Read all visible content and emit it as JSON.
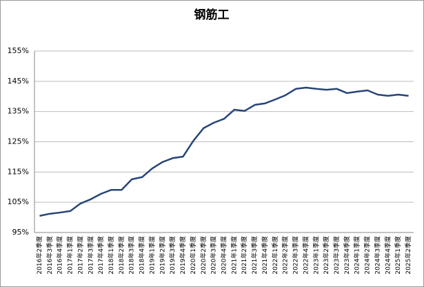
{
  "chart_data": {
    "type": "line",
    "title": "钢筋工",
    "categories": [
      "2016年2季度",
      "2016年3季度",
      "2016年4季度",
      "2017年1季度",
      "2017年2季度",
      "2017年3季度",
      "2017年4季度",
      "2018年1季度",
      "2018年2季度",
      "2018年3季度",
      "2018年4季度",
      "2019年1季度",
      "2019年2季度",
      "2019年3季度",
      "2019年4季度",
      "2020年1季度",
      "2020年2季度",
      "2020年3季度",
      "2020年4季度",
      "2021年1季度",
      "2021年2季度",
      "2021年3季度",
      "2021年4季度",
      "2022年1季度",
      "2022年2季度",
      "2022年3季度",
      "2022年4季度",
      "2023年1季度",
      "2023年2季度",
      "2023年3季度",
      "2023年4季度",
      "2024年1季度",
      "2024年2季度",
      "2024年3季度",
      "2024年4季度",
      "2025年1季度",
      "2025年2季度"
    ],
    "values": [
      100.5,
      101.2,
      101.6,
      102.1,
      104.6,
      106.0,
      107.8,
      109.1,
      109.1,
      112.6,
      113.3,
      116.2,
      118.3,
      119.6,
      120.1,
      125.3,
      129.5,
      131.3,
      132.6,
      135.6,
      135.2,
      137.2,
      137.7,
      139.0,
      140.4,
      142.5,
      142.9,
      142.5,
      142.2,
      142.5,
      141.1,
      141.6,
      142.0,
      140.6,
      140.2,
      140.6,
      140.2
    ],
    "color": "#264478",
    "ylim": [
      95,
      155
    ],
    "yticks": [
      {
        "value": 95,
        "label": "95%"
      },
      {
        "value": 105,
        "label": "105%"
      },
      {
        "value": 115,
        "label": "115%"
      },
      {
        "value": 125,
        "label": "125%"
      },
      {
        "value": 135,
        "label": "135%"
      },
      {
        "value": 145,
        "label": "145%"
      },
      {
        "value": 155,
        "label": "155%"
      }
    ],
    "grid": true
  }
}
